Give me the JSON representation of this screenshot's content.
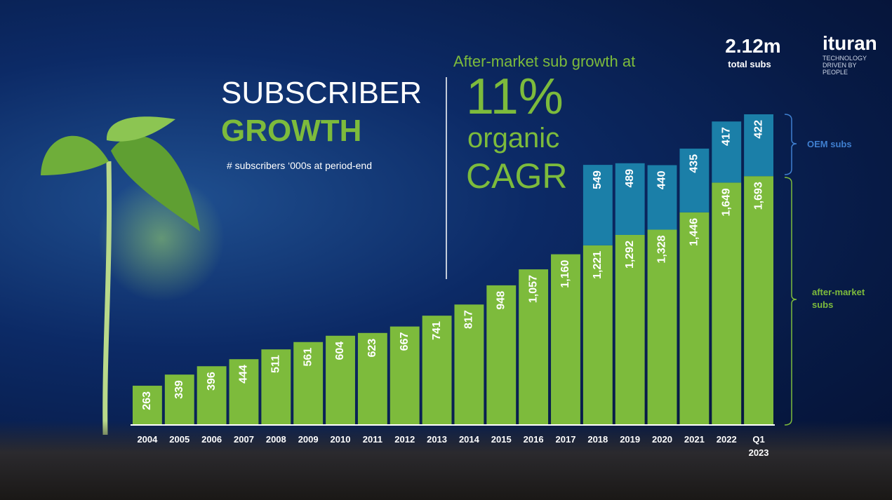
{
  "header": {
    "title_line1": "SUBSCRIBER",
    "title_line2": "GROWTH",
    "subtitle": "# subscribers ‘000s at period-end",
    "callout_line1": "After-market sub growth at",
    "callout_value": "11%",
    "callout_line2": "organic",
    "callout_line3": "CAGR",
    "total_value": "2.12m",
    "total_label": "total subs",
    "logo": "ituran",
    "tagline": "TECHNOLOGY DRIVEN BY PEOPLE"
  },
  "chart_data": {
    "type": "stacked-bar",
    "categories": [
      "2004",
      "2005",
      "2006",
      "2007",
      "2008",
      "2009",
      "2010",
      "2011",
      "2012",
      "2013",
      "2014",
      "2015",
      "2016",
      "2017",
      "2018",
      "2019",
      "2020",
      "2021",
      "2022",
      "Q1 2023"
    ],
    "series": [
      {
        "name": "after-market subs",
        "color": "#7dbb3c",
        "values": [
          263,
          339,
          396,
          444,
          511,
          561,
          604,
          623,
          667,
          741,
          817,
          948,
          1057,
          1160,
          1221,
          1292,
          1328,
          1446,
          1649,
          1693
        ],
        "value_labels": [
          "263",
          "339",
          "396",
          "444",
          "511",
          "561",
          "604",
          "623",
          "667",
          "741",
          "817",
          "948",
          "1,057",
          "1,160",
          "1,221",
          "1,292",
          "1,328",
          "1,446",
          "1,649",
          "1,693"
        ]
      },
      {
        "name": "OEM subs",
        "color": "#1b7fa8",
        "values": [
          null,
          null,
          null,
          null,
          null,
          null,
          null,
          null,
          null,
          null,
          null,
          null,
          null,
          null,
          549,
          489,
          440,
          435,
          417,
          422
        ]
      }
    ]
  }
}
